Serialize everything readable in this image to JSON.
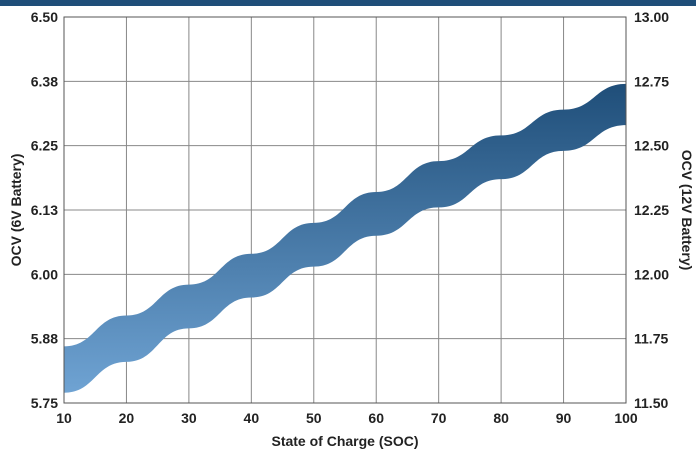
{
  "chart_data": {
    "type": "area",
    "xlabel": "State of Charge (SOC)",
    "ylabel": "OCV (6V Battery)",
    "ylabel_right": "OCV (12V Battery)",
    "x_ticks": [
      "10",
      "20",
      "30",
      "40",
      "50",
      "60",
      "70",
      "80",
      "90",
      "100"
    ],
    "y_ticks": [
      "6.50",
      "6.38",
      "6.25",
      "6.13",
      "6.00",
      "5.88",
      "5.75"
    ],
    "y_ticks_right": [
      "13.00",
      "12.75",
      "12.50",
      "12.25",
      "12.00",
      "11.75",
      "11.50"
    ],
    "xlim": [
      10,
      100
    ],
    "ylim": [
      5.75,
      6.5
    ],
    "ylim_right": [
      11.5,
      13.0
    ],
    "grid": true,
    "band": {
      "x": [
        10,
        20,
        30,
        40,
        50,
        60,
        70,
        80,
        90,
        100
      ],
      "upper": [
        5.86,
        5.92,
        5.98,
        6.04,
        6.1,
        6.16,
        6.22,
        6.27,
        6.32,
        6.37
      ],
      "lower": [
        5.77,
        5.83,
        5.895,
        5.955,
        6.015,
        6.075,
        6.13,
        6.185,
        6.24,
        6.29
      ]
    },
    "colors": {
      "band_top": "#1f4e79",
      "band_bottom": "#6fa3d3",
      "grid": "#888888",
      "frame_bar": "#1f4e79"
    }
  }
}
